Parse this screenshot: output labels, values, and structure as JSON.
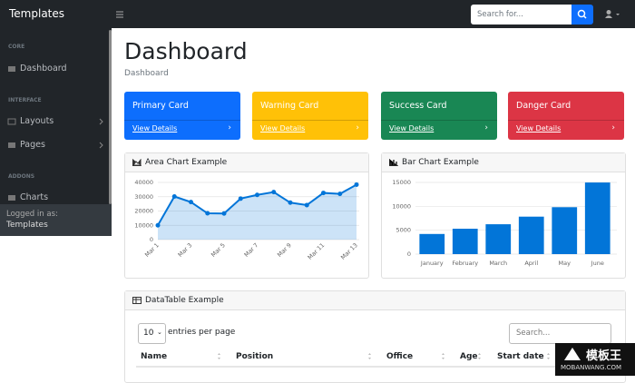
{
  "navbar": {
    "brand": "Templates",
    "search_placeholder": "Search for..."
  },
  "sidebar": {
    "sections": [
      {
        "heading": "CORE",
        "items": [
          "Dashboard"
        ]
      },
      {
        "heading": "INTERFACE",
        "items": [
          "Layouts",
          "Pages"
        ]
      },
      {
        "heading": "ADDONS",
        "items": [
          "Charts"
        ]
      }
    ],
    "footer": {
      "label": "Logged in as:",
      "user": "Templates"
    }
  },
  "header": {
    "title": "Dashboard",
    "breadcrumb": "Dashboard"
  },
  "cards": [
    {
      "title": "Primary Card",
      "link": "View Details"
    },
    {
      "title": "Warning Card",
      "link": "View Details"
    },
    {
      "title": "Success Card",
      "link": "View Details"
    },
    {
      "title": "Danger Card",
      "link": "View Details"
    }
  ],
  "chart_data": [
    {
      "type": "area",
      "title": "Area Chart Example",
      "categories": [
        "Mar 1",
        null,
        "Mar 3",
        null,
        "Mar 5",
        null,
        "Mar 7",
        null,
        "Mar 9",
        null,
        "Mar 11",
        null,
        "Mar 13"
      ],
      "values": [
        10000,
        30162,
        26263,
        18394,
        18287,
        28682,
        31274,
        33259,
        25849,
        24159,
        32651,
        31984,
        38451
      ],
      "color": "#0275d8",
      "ylim": [
        0,
        40000
      ],
      "yticks": [
        0,
        10000,
        20000,
        30000,
        40000
      ],
      "grid": true
    },
    {
      "type": "bar",
      "title": "Bar Chart Example",
      "categories": [
        "January",
        "February",
        "March",
        "April",
        "May",
        "June"
      ],
      "values": [
        4215,
        5312,
        6251,
        7841,
        9821,
        14984
      ],
      "color": "#0275d8",
      "ylim": [
        0,
        15000
      ],
      "yticks": [
        0,
        5000,
        10000,
        15000
      ],
      "grid": true
    }
  ],
  "datatable": {
    "title": "DataTable Example",
    "page_size": 10,
    "page_size_label": "entries per page",
    "search_placeholder": "Search...",
    "columns": [
      "Name",
      "Position",
      "Office",
      "Age",
      "Start date"
    ]
  },
  "watermark": {
    "brand": "模板王",
    "url": "MOBANWANG.COM"
  }
}
